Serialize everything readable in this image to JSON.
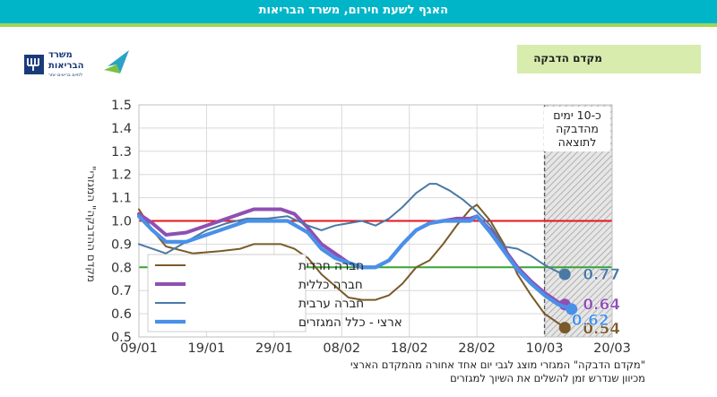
{
  "header": {
    "title": "האגף לשעת חירום, משרד הבריאות"
  },
  "section": {
    "label": "מקדם הדבקה"
  },
  "logo": {
    "line1": "משרד",
    "line2": "הבריאות",
    "line3": "לחיים בריאים יותר"
  },
  "footnote": {
    "line1": "\"מקדם הדבקה\" המגזרי מוצג לגבי יום אחד אחורה מהמקדם הארצי",
    "line2": "מכיוון שנדרש זמן להשלים את השיוך למגזרים"
  },
  "colors": {
    "red_line": "#e8141b",
    "green_line": "#3aa335",
    "haredi": "#7a5a2a",
    "general": "#8f4fb4",
    "arab": "#4b79a5",
    "national": "#4a90e8"
  },
  "chart_data": {
    "type": "line",
    "ylabel": "\"מקדם ההדבקה\" המגזרי",
    "ylim": [
      0.5,
      1.5
    ],
    "yticks": [
      "0.5",
      "0.6",
      "0.7",
      "0.8",
      "0.9",
      "1.0",
      "1.1",
      "1.2",
      "1.3",
      "1.4",
      "1.5"
    ],
    "xticks": [
      "09/01",
      "19/01",
      "29/01",
      "08/02",
      "18/02",
      "28/02",
      "10/03",
      "20/03"
    ],
    "xlim_days": [
      0,
      70
    ],
    "reference_lines": [
      1.0,
      0.8
    ],
    "shaded_note": "כ-10 ימים מהדבקה לתוצאה",
    "legend": [
      "חברה חרדית",
      "חברה כללית",
      "חברה ערבית",
      "ארצי - כלל המגזרים"
    ],
    "series": [
      {
        "name": "חברה חרדית",
        "end_label": "0.54",
        "points": [
          [
            0,
            1.05
          ],
          [
            2,
            0.96
          ],
          [
            4,
            0.89
          ],
          [
            8,
            0.86
          ],
          [
            12,
            0.87
          ],
          [
            15,
            0.88
          ],
          [
            17,
            0.9
          ],
          [
            19,
            0.9
          ],
          [
            21,
            0.9
          ],
          [
            23,
            0.88
          ],
          [
            25,
            0.84
          ],
          [
            27,
            0.77
          ],
          [
            29,
            0.72
          ],
          [
            31,
            0.67
          ],
          [
            33,
            0.66
          ],
          [
            35,
            0.66
          ],
          [
            37,
            0.68
          ],
          [
            39,
            0.73
          ],
          [
            41,
            0.8
          ],
          [
            43,
            0.83
          ],
          [
            45,
            0.9
          ],
          [
            47,
            0.98
          ],
          [
            49,
            1.05
          ],
          [
            50,
            1.07
          ],
          [
            52,
            1.0
          ],
          [
            54,
            0.9
          ],
          [
            56,
            0.77
          ],
          [
            58,
            0.68
          ],
          [
            60,
            0.6
          ],
          [
            62,
            0.56
          ],
          [
            63,
            0.54
          ]
        ]
      },
      {
        "name": "חברה כללית",
        "end_label": "0.64",
        "points": [
          [
            0,
            1.03
          ],
          [
            2,
            0.99
          ],
          [
            4,
            0.94
          ],
          [
            7,
            0.95
          ],
          [
            11,
            0.99
          ],
          [
            15,
            1.03
          ],
          [
            17,
            1.05
          ],
          [
            19,
            1.05
          ],
          [
            21,
            1.05
          ],
          [
            23,
            1.03
          ],
          [
            25,
            0.97
          ],
          [
            27,
            0.9
          ],
          [
            29,
            0.86
          ],
          [
            31,
            0.82
          ],
          [
            33,
            0.8
          ],
          [
            35,
            0.8
          ],
          [
            37,
            0.83
          ],
          [
            39,
            0.9
          ],
          [
            41,
            0.96
          ],
          [
            43,
            0.99
          ],
          [
            45,
            1.0
          ],
          [
            47,
            1.01
          ],
          [
            49,
            1.01
          ],
          [
            50,
            1.02
          ],
          [
            52,
            0.96
          ],
          [
            54,
            0.88
          ],
          [
            56,
            0.8
          ],
          [
            58,
            0.74
          ],
          [
            60,
            0.69
          ],
          [
            62,
            0.65
          ],
          [
            63,
            0.64
          ]
        ]
      },
      {
        "name": "חברה ערבית",
        "end_label": "0.77",
        "points": [
          [
            0,
            0.9
          ],
          [
            2,
            0.88
          ],
          [
            4,
            0.86
          ],
          [
            7,
            0.91
          ],
          [
            10,
            0.96
          ],
          [
            13,
            0.99
          ],
          [
            16,
            1.01
          ],
          [
            19,
            1.01
          ],
          [
            22,
            1.02
          ],
          [
            25,
            0.98
          ],
          [
            27,
            0.96
          ],
          [
            29,
            0.98
          ],
          [
            31,
            0.99
          ],
          [
            33,
            1.0
          ],
          [
            35,
            0.98
          ],
          [
            37,
            1.01
          ],
          [
            39,
            1.06
          ],
          [
            41,
            1.12
          ],
          [
            43,
            1.16
          ],
          [
            44,
            1.16
          ],
          [
            46,
            1.13
          ],
          [
            48,
            1.09
          ],
          [
            50,
            1.04
          ],
          [
            52,
            0.98
          ],
          [
            54,
            0.89
          ],
          [
            56,
            0.88
          ],
          [
            58,
            0.85
          ],
          [
            60,
            0.81
          ],
          [
            62,
            0.78
          ],
          [
            63,
            0.77
          ]
        ]
      },
      {
        "name": "ארצי - כלל המגזרים",
        "end_label": "0.62",
        "points": [
          [
            0,
            1.02
          ],
          [
            2,
            0.96
          ],
          [
            4,
            0.91
          ],
          [
            7,
            0.91
          ],
          [
            10,
            0.94
          ],
          [
            13,
            0.97
          ],
          [
            16,
            1.0
          ],
          [
            19,
            1.0
          ],
          [
            22,
            1.0
          ],
          [
            25,
            0.95
          ],
          [
            27,
            0.88
          ],
          [
            29,
            0.84
          ],
          [
            31,
            0.82
          ],
          [
            33,
            0.8
          ],
          [
            35,
            0.8
          ],
          [
            37,
            0.83
          ],
          [
            39,
            0.9
          ],
          [
            41,
            0.96
          ],
          [
            43,
            0.99
          ],
          [
            45,
            1.0
          ],
          [
            47,
            1.0
          ],
          [
            49,
            1.0
          ],
          [
            50,
            1.02
          ],
          [
            52,
            0.95
          ],
          [
            54,
            0.87
          ],
          [
            56,
            0.79
          ],
          [
            58,
            0.73
          ],
          [
            60,
            0.68
          ],
          [
            62,
            0.64
          ],
          [
            64,
            0.62
          ]
        ]
      }
    ]
  }
}
